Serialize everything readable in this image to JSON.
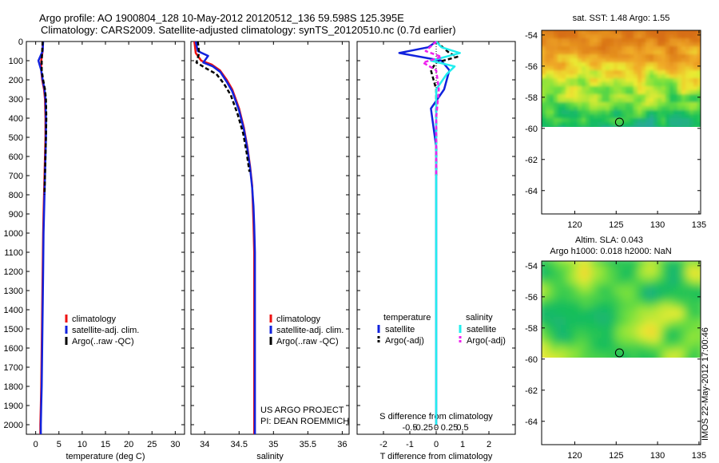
{
  "figure": {
    "title_line1": "Argo profile: AO 1900804_128 10-May-2012 20120512_136 59.598S 125.395E",
    "title_line2": "Climatology: CARS2009. Satellite-adjusted climatology: synTS_20120510.nc (0.7d earlier)",
    "credit_line1": "US ARGO PROJECT",
    "credit_line2": "PI: DEAN ROEMMICH",
    "stamp": "IMOS 22-May-2012 17:00:46"
  },
  "colors": {
    "climatology": "#ee1111",
    "satellite": "#1122dd",
    "argo": "#000000",
    "sal_satellite": "#22eeee",
    "sal_argo": "#ee22ee"
  },
  "chart_data": [
    {
      "type": "line",
      "panel": "temperature",
      "xlabel": "temperature (deg C)",
      "ylabel": "",
      "xlim": [
        -2,
        32
      ],
      "ylim": [
        2050,
        0
      ],
      "xticks": [
        0,
        5,
        10,
        15,
        20,
        25,
        30
      ],
      "yticks": [
        0,
        100,
        200,
        300,
        400,
        500,
        600,
        700,
        800,
        900,
        1000,
        1100,
        1200,
        1300,
        1400,
        1500,
        1600,
        1700,
        1800,
        1900,
        2000
      ],
      "legend": [
        "climatology",
        "satellite-adj. clim.",
        "Argo(..raw -QC)"
      ],
      "series": [
        {
          "name": "climatology",
          "x": [
            1.5,
            1.5,
            1.2,
            1.2,
            1.4,
            1.8,
            2.0,
            2.1,
            2.1,
            2.0,
            1.9,
            1.8,
            1.7,
            1.6,
            1.5,
            1.4,
            1.3,
            1.2,
            1.1,
            1.0,
            1.0
          ],
          "y": [
            0,
            50,
            100,
            150,
            200,
            250,
            300,
            400,
            500,
            600,
            700,
            800,
            900,
            1000,
            1200,
            1400,
            1600,
            1800,
            1900,
            2000,
            2050
          ]
        },
        {
          "name": "satellite-adj. clim.",
          "x": [
            1.6,
            1.5,
            0.6,
            1.2,
            1.5,
            1.9,
            2.1,
            2.2,
            2.2,
            2.1,
            2.0,
            1.9,
            1.8,
            1.7,
            1.6,
            1.5,
            1.4,
            1.3,
            1.2,
            1.1,
            1.1
          ],
          "y": [
            0,
            50,
            100,
            150,
            200,
            250,
            300,
            400,
            500,
            600,
            700,
            800,
            900,
            1000,
            1200,
            1400,
            1600,
            1800,
            1900,
            2000,
            2050
          ]
        },
        {
          "name": "Argo(..raw -QC)",
          "x": [
            1.5,
            1.4,
            1.3,
            1.3,
            1.6,
            2.0,
            2.2,
            2.3,
            2.2,
            2.1,
            2.0,
            1.9
          ],
          "y": [
            0,
            50,
            100,
            150,
            200,
            250,
            300,
            400,
            500,
            600,
            700,
            800
          ]
        }
      ]
    },
    {
      "type": "line",
      "panel": "salinity",
      "xlabel": "salinity",
      "ylabel": "",
      "xlim": [
        33.8,
        36.1
      ],
      "ylim": [
        2050,
        0
      ],
      "xticks": [
        34,
        34.5,
        35,
        35.5,
        36
      ],
      "xticklabels": [
        "34",
        "34.5",
        "35",
        "35.5",
        "36"
      ],
      "legend": [
        "climatology",
        "satellite-adj. clim.",
        "Argo(..raw -QC)"
      ],
      "series": [
        {
          "name": "climatology",
          "x": [
            33.85,
            33.87,
            33.95,
            34.1,
            34.22,
            34.32,
            34.4,
            34.5,
            34.57,
            34.62,
            34.66,
            34.69,
            34.7,
            34.71,
            34.72,
            34.72,
            34.72,
            34.72,
            34.72,
            34.72
          ],
          "y": [
            0,
            60,
            100,
            120,
            150,
            200,
            250,
            350,
            450,
            550,
            650,
            750,
            850,
            950,
            1100,
            1300,
            1500,
            1700,
            1900,
            2050
          ]
        },
        {
          "name": "satellite-adj. clim.",
          "x": [
            33.87,
            33.9,
            34.05,
            33.98,
            34.12,
            34.23,
            34.32,
            34.4,
            34.5,
            34.57,
            34.62,
            34.66,
            34.69,
            34.71,
            34.72,
            34.73,
            34.73,
            34.73,
            34.73,
            34.73,
            34.73
          ],
          "y": [
            0,
            50,
            75,
            110,
            130,
            160,
            210,
            260,
            360,
            460,
            560,
            660,
            760,
            860,
            960,
            1100,
            1300,
            1500,
            1700,
            1900,
            2050
          ]
        },
        {
          "name": "Argo(..raw -QC)",
          "x": [
            33.9,
            33.92,
            33.88,
            34.02,
            34.17,
            34.28,
            34.38,
            34.48,
            34.56,
            34.61,
            34.65
          ],
          "y": [
            0,
            60,
            110,
            140,
            170,
            220,
            280,
            380,
            480,
            580,
            680
          ]
        }
      ]
    },
    {
      "type": "line",
      "panel": "difference",
      "xlabel": "T difference from climatology",
      "xlabel_top": "S difference from climatology",
      "xlim": [
        -3,
        3
      ],
      "ylim": [
        2050,
        0
      ],
      "xticks": [
        -2,
        -1,
        0,
        1,
        2
      ],
      "xticks_S": [
        -0.5,
        -0.25,
        0,
        0.25,
        0.5
      ],
      "xticklabels_S": [
        "-0.5",
        "-0.25",
        "0",
        "0.25",
        "0.5"
      ],
      "legend": {
        "temperature_title": "temperature",
        "salinity_title": "salinity",
        "entries": [
          "satellite",
          "Argo(-adj)",
          "satellite",
          "Argo(-adj)"
        ]
      },
      "series": [
        {
          "name": "satellite",
          "group": "temperature",
          "x": [
            0.0,
            -0.3,
            -1.4,
            0.2,
            0.5,
            0.3,
            -0.2,
            -0.1,
            0.0,
            0.0,
            0.0,
            0.0
          ],
          "y": [
            0,
            30,
            60,
            100,
            150,
            250,
            350,
            450,
            550,
            700,
            900,
            2000
          ]
        },
        {
          "name": "Argo(-adj)",
          "group": "temperature",
          "x": [
            0.0,
            0.5,
            0.8,
            0.0,
            -0.2,
            0.0,
            0.0,
            0.0
          ],
          "y": [
            0,
            60,
            80,
            110,
            150,
            250,
            400,
            700
          ]
        },
        {
          "name": "satellite",
          "group": "salinity",
          "x": [
            0.0,
            0.2,
            0.9,
            -0.2,
            0.7,
            0.4,
            0.0,
            0.0,
            0.0,
            0.0
          ],
          "y": [
            0,
            30,
            60,
            100,
            130,
            170,
            250,
            400,
            800,
            2000
          ]
        },
        {
          "name": "Argo(-adj)",
          "group": "salinity",
          "x": [
            0.0,
            -0.4,
            0.2,
            -0.5,
            0.0,
            0.1,
            0.0,
            0.0
          ],
          "y": [
            0,
            50,
            80,
            110,
            150,
            250,
            400,
            700
          ]
        }
      ]
    },
    {
      "type": "heatmap",
      "panel": "sst_map",
      "title": "sat. SST: 1.48 Argo: 1.55",
      "xlim": [
        116,
        135.2
      ],
      "ylim": [
        -65.5,
        -53.7
      ],
      "xticks": [
        120,
        125,
        130,
        135
      ],
      "yticks": [
        -54,
        -56,
        -58,
        -60,
        -62,
        -64
      ],
      "data_extent_lat": [
        -60,
        -53.7
      ],
      "marker": {
        "lon": 125.395,
        "lat": -59.598
      }
    },
    {
      "type": "heatmap",
      "panel": "sla_map",
      "title_line1": "Altim. SLA: 0.043",
      "title_line2": "Argo h1000: 0.018 h2000: NaN",
      "xlim": [
        116,
        135.2
      ],
      "ylim": [
        -65.5,
        -53.7
      ],
      "xticks": [
        120,
        125,
        130,
        135
      ],
      "yticks": [
        -54,
        -56,
        -58,
        -60,
        -62,
        -64
      ],
      "data_extent_lat": [
        -60,
        -53.7
      ],
      "marker": {
        "lon": 125.395,
        "lat": -59.598
      }
    }
  ]
}
